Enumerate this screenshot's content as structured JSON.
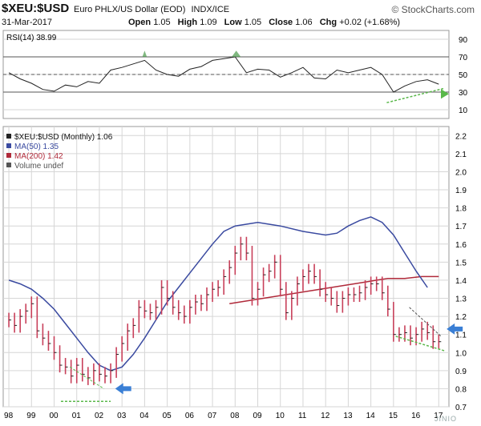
{
  "header": {
    "symbol": "$XEU:$USD",
    "description": "Euro PHLX/US Dollar (EOD)",
    "exchange": "INDX/ICE",
    "brand": "© StockCharts.com",
    "date": "31-Mar-2017",
    "open_label": "Open",
    "open": "1.05",
    "high_label": "High",
    "high": "1.09",
    "low_label": "Low",
    "low": "1.05",
    "close_label": "Close",
    "close": "1.06",
    "chg_label": "Chg",
    "chg": "+0.02 (+1.68%)"
  },
  "colors": {
    "price": "#c8405a",
    "ma50": "#3a4aa0",
    "ma200": "#b02a3a",
    "trendline": "#5ab84a",
    "arrow": "#3a7fd5",
    "rsi_fill": "#4a9a4a",
    "grid": "#d6d6d6"
  },
  "chart_data": [
    {
      "type": "line",
      "title": "RSI(14)",
      "legend": "RSI(14) 38.99",
      "ylim": [
        0,
        100
      ],
      "y_ticks": [
        "90",
        "70",
        "50",
        "30",
        "10"
      ],
      "reference_lines": [
        70,
        50,
        30
      ],
      "x": [
        1998.0,
        1998.5,
        1999.0,
        1999.5,
        2000.0,
        2000.5,
        2001.0,
        2001.5,
        2002.0,
        2002.5,
        2003.0,
        2003.5,
        2004.0,
        2004.5,
        2005.0,
        2005.5,
        2006.0,
        2006.5,
        2007.0,
        2007.5,
        2008.0,
        2008.5,
        2009.0,
        2009.5,
        2010.0,
        2010.5,
        2011.0,
        2011.5,
        2012.0,
        2012.5,
        2013.0,
        2013.5,
        2014.0,
        2014.5,
        2015.0,
        2015.5,
        2016.0,
        2016.5,
        2017.0
      ],
      "values": [
        52,
        45,
        40,
        33,
        31,
        38,
        36,
        42,
        40,
        55,
        58,
        62,
        66,
        55,
        50,
        48,
        56,
        59,
        66,
        68,
        70,
        52,
        56,
        55,
        47,
        52,
        58,
        46,
        45,
        55,
        52,
        55,
        58,
        50,
        30,
        37,
        42,
        44,
        39
      ]
    },
    {
      "type": "line",
      "title": "$XEU:$USD (Monthly) 1.06",
      "legend": [
        {
          "name": "$XEU:$USD (Monthly) 1.06"
        },
        {
          "name": "MA(50) 1.35"
        },
        {
          "name": "MA(200) 1.42"
        },
        {
          "name": "Volume undef"
        }
      ],
      "ylim": [
        0.7,
        2.25
      ],
      "y_ticks": [
        "2.2",
        "2.1",
        "2.0",
        "1.9",
        "1.8",
        "1.7",
        "1.6",
        "1.5",
        "1.4",
        "1.3",
        "1.2",
        "1.1",
        "1.0",
        "0.9",
        "0.8",
        "0.7"
      ],
      "x_ticks": [
        "98",
        "99",
        "00",
        "01",
        "02",
        "03",
        "04",
        "05",
        "06",
        "07",
        "08",
        "09",
        "10",
        "11",
        "12",
        "13",
        "14",
        "15",
        "16",
        "17"
      ],
      "x_tick_years": [
        1998,
        1999,
        2000,
        2001,
        2002,
        2003,
        2004,
        2005,
        2006,
        2007,
        2008,
        2009,
        2010,
        2011,
        2012,
        2013,
        2014,
        2015,
        2016,
        2017
      ],
      "x": [
        1998.0,
        1998.25,
        1998.5,
        1998.75,
        1999.0,
        1999.25,
        1999.5,
        1999.75,
        2000.0,
        2000.25,
        2000.5,
        2000.75,
        2001.0,
        2001.25,
        2001.5,
        2001.75,
        2002.0,
        2002.25,
        2002.5,
        2002.75,
        2003.0,
        2003.25,
        2003.5,
        2003.75,
        2004.0,
        2004.25,
        2004.5,
        2004.75,
        2005.0,
        2005.25,
        2005.5,
        2005.75,
        2006.0,
        2006.25,
        2006.5,
        2006.75,
        2007.0,
        2007.25,
        2007.5,
        2007.75,
        2008.0,
        2008.25,
        2008.5,
        2008.75,
        2009.0,
        2009.25,
        2009.5,
        2009.75,
        2010.0,
        2010.25,
        2010.5,
        2010.75,
        2011.0,
        2011.25,
        2011.5,
        2011.75,
        2012.0,
        2012.25,
        2012.5,
        2012.75,
        2013.0,
        2013.25,
        2013.5,
        2013.75,
        2014.0,
        2014.25,
        2014.5,
        2014.75,
        2015.0,
        2015.25,
        2015.5,
        2015.75,
        2016.0,
        2016.25,
        2016.5,
        2016.75,
        2017.0
      ],
      "series": [
        {
          "name": "$XEU:$USD (Monthly) 1.06",
          "values": [
            1.18,
            1.15,
            1.2,
            1.23,
            1.27,
            1.12,
            1.08,
            1.05,
            1.0,
            0.93,
            0.92,
            0.87,
            0.93,
            0.88,
            0.86,
            0.9,
            0.88,
            0.87,
            0.9,
            0.99,
            1.05,
            1.12,
            1.15,
            1.25,
            1.23,
            1.22,
            1.25,
            1.36,
            1.3,
            1.25,
            1.22,
            1.2,
            1.25,
            1.28,
            1.27,
            1.32,
            1.35,
            1.36,
            1.42,
            1.47,
            1.55,
            1.6,
            1.55,
            1.3,
            1.35,
            1.43,
            1.45,
            1.5,
            1.35,
            1.22,
            1.3,
            1.38,
            1.42,
            1.45,
            1.42,
            1.35,
            1.32,
            1.3,
            1.26,
            1.3,
            1.32,
            1.32,
            1.33,
            1.36,
            1.38,
            1.38,
            1.33,
            1.24,
            1.1,
            1.1,
            1.11,
            1.08,
            1.1,
            1.13,
            1.11,
            1.06,
            1.06
          ]
        }
      ],
      "price_monthly_scaled": true,
      "ma50": [
        1.4,
        1.38,
        1.35,
        1.3,
        1.24,
        1.16,
        1.08,
        1.0,
        0.93,
        0.9,
        0.92,
        0.99,
        1.08,
        1.18,
        1.28,
        1.36,
        1.44,
        1.52,
        1.6,
        1.67,
        1.7,
        1.72,
        1.7,
        1.67,
        1.65,
        1.66,
        1.7,
        1.73,
        1.75,
        1.72,
        1.65,
        1.55,
        1.45,
        1.36
      ],
      "ma50_x": [
        1998.0,
        1998.5,
        1999.0,
        1999.5,
        2000.0,
        2000.5,
        2001.0,
        2001.5,
        2002.0,
        2002.5,
        2003.0,
        2003.5,
        2004.0,
        2004.5,
        2005.0,
        2005.5,
        2006.0,
        2006.5,
        2007.0,
        2007.5,
        2008.0,
        2009.0,
        2010.0,
        2011.0,
        2012.0,
        2012.5,
        2013.0,
        2013.5,
        2014.0,
        2014.5,
        2015.0,
        2015.5,
        2016.0,
        2016.5
      ],
      "ma200": [
        1.27,
        1.28,
        1.29,
        1.3,
        1.31,
        1.32,
        1.33,
        1.34,
        1.35,
        1.36,
        1.37,
        1.38,
        1.39,
        1.4,
        1.41,
        1.41,
        1.42,
        1.42
      ],
      "ma200_x": [
        2007.75,
        2008.25,
        2008.75,
        2009.25,
        2009.75,
        2010.25,
        2010.75,
        2011.25,
        2011.75,
        2012.25,
        2012.75,
        2013.25,
        2013.75,
        2014.25,
        2014.75,
        2015.5,
        2016.25,
        2017.0
      ]
    }
  ]
}
